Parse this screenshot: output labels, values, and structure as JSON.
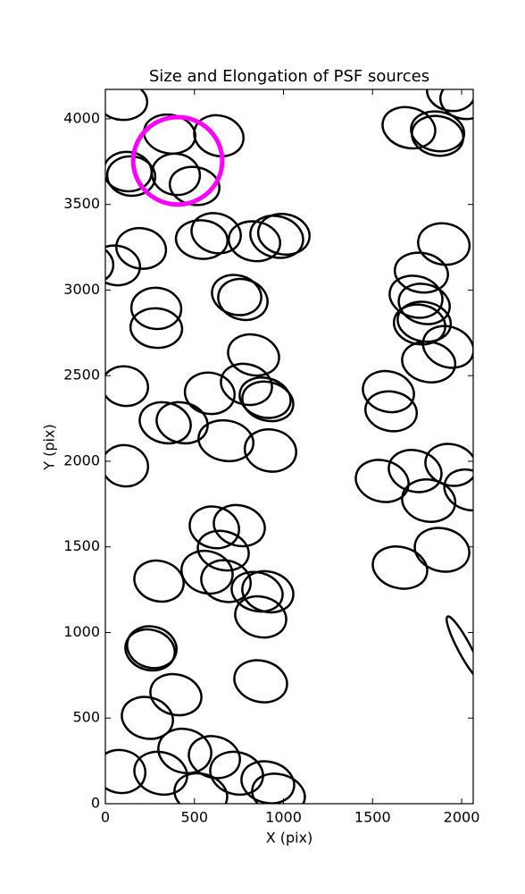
{
  "chart_data": {
    "type": "ellipse",
    "title": "Size and Elongation of PSF sources",
    "x_label": "X (pix)",
    "y_label": "Y (pix)",
    "xlim": [
      0,
      2065
    ],
    "ylim": [
      0,
      4172
    ],
    "xticks": [
      0,
      500,
      1000,
      1500,
      2000
    ],
    "yticks": [
      0,
      500,
      1000,
      1500,
      2000,
      2500,
      3000,
      3500,
      4000
    ],
    "series": [
      {
        "color": "#000000",
        "x": [
          95,
          361,
          637,
          125,
          145,
          396,
          501,
          1704,
          1865,
          1865,
          1940,
          2015,
          622,
          541,
          837,
          962,
          1002,
          201,
          60,
          -90,
          1774,
          1900,
          737,
          772,
          1744,
          1790,
          1790,
          1764,
          286,
          286,
          1925,
          1815,
          832,
          110,
          1589,
          1604,
          586,
          792,
          897,
          912,
          336,
          431,
          677,
          927,
          110,
          1554,
          1739,
          1940,
          2040,
          1815,
          612,
          752,
          662,
          571,
          677,
          852,
          912,
          872,
          301,
          1654,
          1890,
          2015,
          251,
          261,
          396,
          872,
          236,
          446,
          612,
          737,
          311,
          85,
          536,
          912,
          972
        ],
        "y": [
          4104,
          3911,
          3901,
          3692,
          3666,
          3676,
          3608,
          3948,
          3927,
          3901,
          4157,
          4110,
          3332,
          3295,
          3285,
          3311,
          3326,
          3243,
          3144,
          3154,
          3102,
          3269,
          2971,
          2945,
          2961,
          2919,
          2815,
          2799,
          2893,
          2778,
          2668,
          2580,
          2621,
          2439,
          2407,
          2292,
          2397,
          2449,
          2371,
          2350,
          2225,
          2225,
          2120,
          2063,
          1974,
          1885,
          1943,
          1979,
          1833,
          1770,
          1614,
          1624,
          1478,
          1352,
          1300,
          1238,
          1238,
          1091,
          1300,
          1379,
          1483,
          909,
          898,
          914,
          637,
          715,
          501,
          308,
          272,
          178,
          178,
          188,
          57,
          125,
          57
        ],
        "width": [
          280,
          290,
          280,
          270,
          270,
          270,
          280,
          300,
          300,
          290,
          270,
          270,
          280,
          290,
          290,
          300,
          290,
          280,
          270,
          270,
          300,
          290,
          280,
          280,
          300,
          290,
          300,
          290,
          280,
          290,
          290,
          300,
          290,
          260,
          290,
          290,
          280,
          290,
          290,
          290,
          290,
          290,
          310,
          290,
          260,
          300,
          300,
          290,
          280,
          300,
          280,
          290,
          290,
          290,
          280,
          290,
          290,
          290,
          280,
          310,
          310,
          400,
          280,
          280,
          290,
          300,
          290,
          300,
          290,
          300,
          300,
          280,
          300,
          300,
          300
        ],
        "height": [
          220,
          225,
          235,
          230,
          230,
          240,
          220,
          235,
          230,
          230,
          220,
          220,
          230,
          225,
          230,
          240,
          235,
          235,
          230,
          230,
          230,
          240,
          230,
          235,
          240,
          230,
          230,
          230,
          240,
          230,
          235,
          235,
          235,
          230,
          235,
          230,
          240,
          235,
          230,
          225,
          235,
          235,
          235,
          245,
          240,
          240,
          240,
          240,
          230,
          245,
          240,
          235,
          225,
          245,
          240,
          225,
          235,
          235,
          235,
          240,
          250,
          75,
          235,
          240,
          235,
          240,
          240,
          255,
          240,
          245,
          245,
          250,
          235,
          240,
          230
        ],
        "angle": [
          -5,
          -10,
          -15,
          -5,
          -5,
          -10,
          -10,
          -15,
          -10,
          -10,
          -10,
          -10,
          -15,
          -5,
          -10,
          -15,
          -10,
          -10,
          -10,
          -10,
          -10,
          -10,
          -15,
          -15,
          -15,
          -15,
          -10,
          -10,
          -5,
          -5,
          -20,
          -10,
          -15,
          -10,
          -15,
          -10,
          -10,
          -15,
          -15,
          -15,
          -15,
          -15,
          -10,
          -10,
          -10,
          -15,
          -15,
          -15,
          -20,
          -10,
          -15,
          -15,
          -15,
          -15,
          -15,
          -15,
          -15,
          -15,
          -15,
          -15,
          -15,
          -62,
          -15,
          -15,
          -15,
          -15,
          -15,
          -15,
          -15,
          -15,
          -15,
          -10,
          -15,
          -15,
          -15
        ]
      },
      {
        "color": "#ff00ff",
        "x": [
          406
        ],
        "y": [
          3755
        ],
        "width": [
          500
        ],
        "height": [
          510
        ],
        "angle": [
          0
        ]
      }
    ]
  }
}
